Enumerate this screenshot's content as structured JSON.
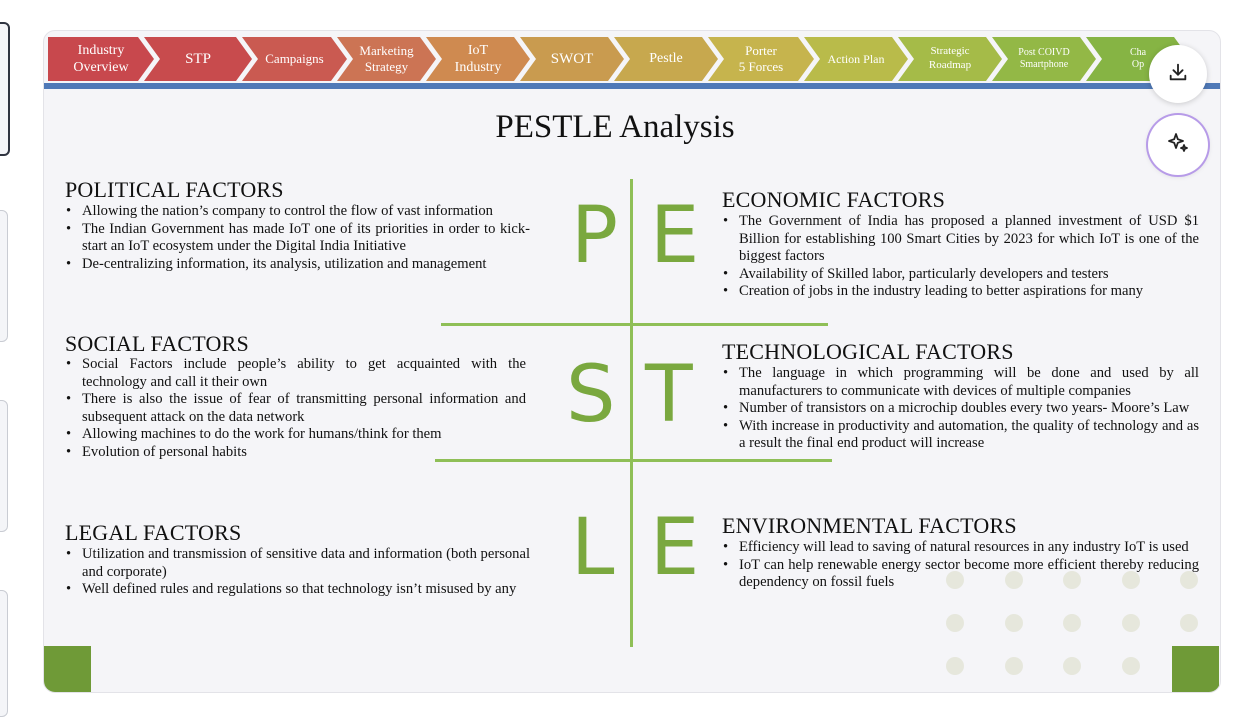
{
  "nav": [
    {
      "label": "Industry\nOverview",
      "color": "#c8484d"
    },
    {
      "label": "STP",
      "color": "#c84b4d"
    },
    {
      "label": "Campaigns",
      "color": "#ca5a51"
    },
    {
      "label": "Marketing\nStrategy",
      "color": "#cc7454"
    },
    {
      "label": "IoT\nIndustry",
      "color": "#cf8a50"
    },
    {
      "label": "SWOT",
      "color": "#c99b4f"
    },
    {
      "label": "Pestle",
      "color": "#c7a84e"
    },
    {
      "label": "Porter\n5 Forces",
      "color": "#c6b44d"
    },
    {
      "label": "Action Plan",
      "color": "#b9bb4a"
    },
    {
      "label": "Strategic\nRoadmap",
      "color": "#a5bb48"
    },
    {
      "label": "Post COIVD\nSmartphone",
      "color": "#93b846"
    },
    {
      "label": "Cha\nOp",
      "color": "#86b444"
    }
  ],
  "slide": {
    "title": "PESTLE Analysis",
    "letters": [
      "P",
      "E",
      "S",
      "T",
      "L",
      "E"
    ],
    "political": {
      "heading": "POLITICAL FACTORS",
      "items": [
        "Allowing the nation’s company to control the flow of vast information",
        "The Indian Government has made IoT one of its priorities in order to kick-start an IoT ecosystem under the Digital India Initiative",
        "De-centralizing information, its analysis, utilization and management"
      ]
    },
    "economic": {
      "heading": "ECONOMIC FACTORS",
      "items": [
        "The Government of India has proposed a planned investment of USD $1 Billion for establishing 100 Smart Cities by 2023 for which IoT is one of the biggest factors",
        "Availability of Skilled labor, particularly developers and testers",
        "Creation of jobs in the industry leading to better aspirations for many"
      ]
    },
    "social": {
      "heading": "SOCIAL FACTORS",
      "items": [
        "Social Factors include people’s ability to get acquainted with the technology and call it their own",
        " There is also the issue of fear of transmitting personal information and subsequent attack on the data network",
        "Allowing machines to do the work for humans/think for them",
        "Evolution of personal habits"
      ]
    },
    "technological": {
      "heading": "TECHNOLOGICAL FACTORS",
      "items": [
        "The language in which programming will be done and used by all manufacturers to communicate with devices of multiple companies",
        "Number of transistors on a microchip doubles every two years- Moore’s Law",
        "With increase in productivity and automation, the quality of technology and as a result the final end product will increase"
      ]
    },
    "legal": {
      "heading": "LEGAL FACTORS",
      "items": [
        "Utilization and transmission of sensitive data and information (both personal and corporate)",
        "Well defined rules and regulations so that technology isn’t misused by any"
      ]
    },
    "environmental": {
      "heading": "ENVIRONMENTAL FACTORS",
      "items": [
        "Efficiency will lead to saving of natural resources in any industry IoT is used",
        "IoT can help renewable energy sector become more efficient thereby reducing dependency on fossil fuels"
      ]
    }
  },
  "actions": {
    "download_icon": "download-icon",
    "ai_icon": "sparkle-icon"
  },
  "colors": {
    "accent_green": "#7aa83f",
    "rule_blue": "#4f79b7"
  }
}
